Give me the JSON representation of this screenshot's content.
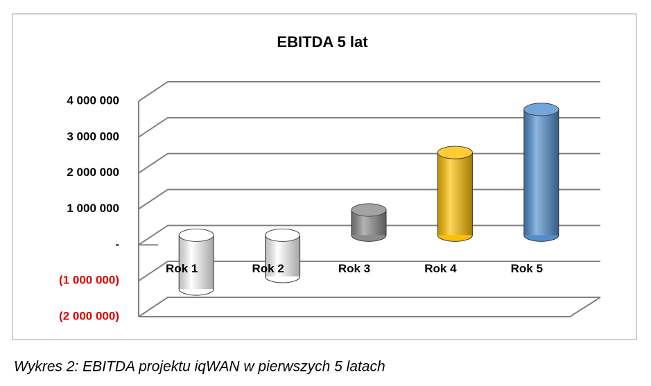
{
  "chart_data": {
    "type": "bar3d",
    "title": "EBITDA 5 lat",
    "categories": [
      "Rok 1",
      "Rok 2",
      "Rok 3",
      "Rok 4",
      "Rok 5"
    ],
    "values": [
      -1500000,
      -1150000,
      700000,
      2300000,
      3500000
    ],
    "colors": [
      "#ffffff",
      "#ffffff",
      "#8c8c8c",
      "#ffc000",
      "#4f8fd0"
    ],
    "ylim": [
      -2000000,
      4000000
    ],
    "yticks": [
      {
        "value": 4000000,
        "label": "4 000 000"
      },
      {
        "value": 3000000,
        "label": "3 000 000"
      },
      {
        "value": 2000000,
        "label": "2 000 000"
      },
      {
        "value": 1000000,
        "label": "1 000 000"
      },
      {
        "value": 0,
        "label": "-"
      },
      {
        "value": -1000000,
        "label": "(1 000 000)"
      },
      {
        "value": -2000000,
        "label": "(2 000 000)"
      }
    ],
    "negative_tick_color": "#e00000",
    "grid": true
  },
  "caption": "Wykres 2: EBITDA projektu iqWAN w pierwszych 5 latach"
}
